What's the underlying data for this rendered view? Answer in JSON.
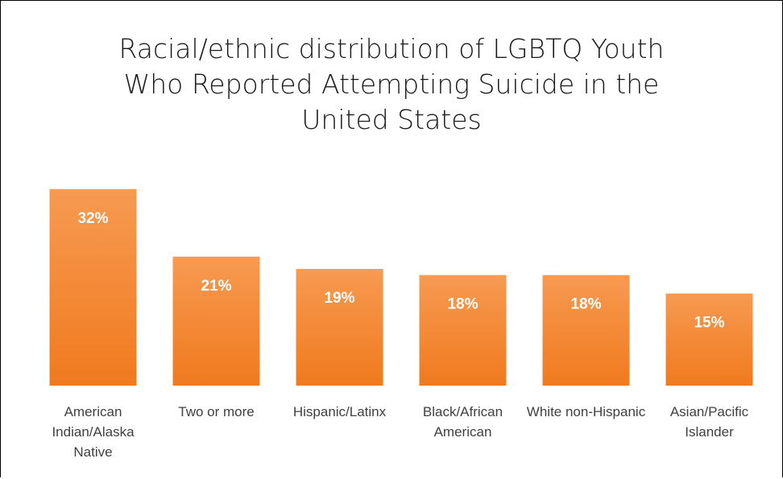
{
  "chart_data": {
    "type": "bar",
    "title": "Racial/ethnic distribution of LGBTQ Youth Who Reported Attempting Suicide in the United States",
    "categories": [
      "American Indian/Alaska Native",
      "Two or more",
      "Hispanic/Latinx",
      "Black/African American",
      "White non-Hispanic",
      "Asian/Pacific Islander"
    ],
    "values": [
      32,
      21,
      19,
      18,
      18,
      15
    ],
    "value_labels": [
      "32%",
      "21%",
      "19%",
      "18%",
      "18%",
      "15%"
    ],
    "color": "#f58a35",
    "ylim": [
      0,
      35
    ]
  }
}
